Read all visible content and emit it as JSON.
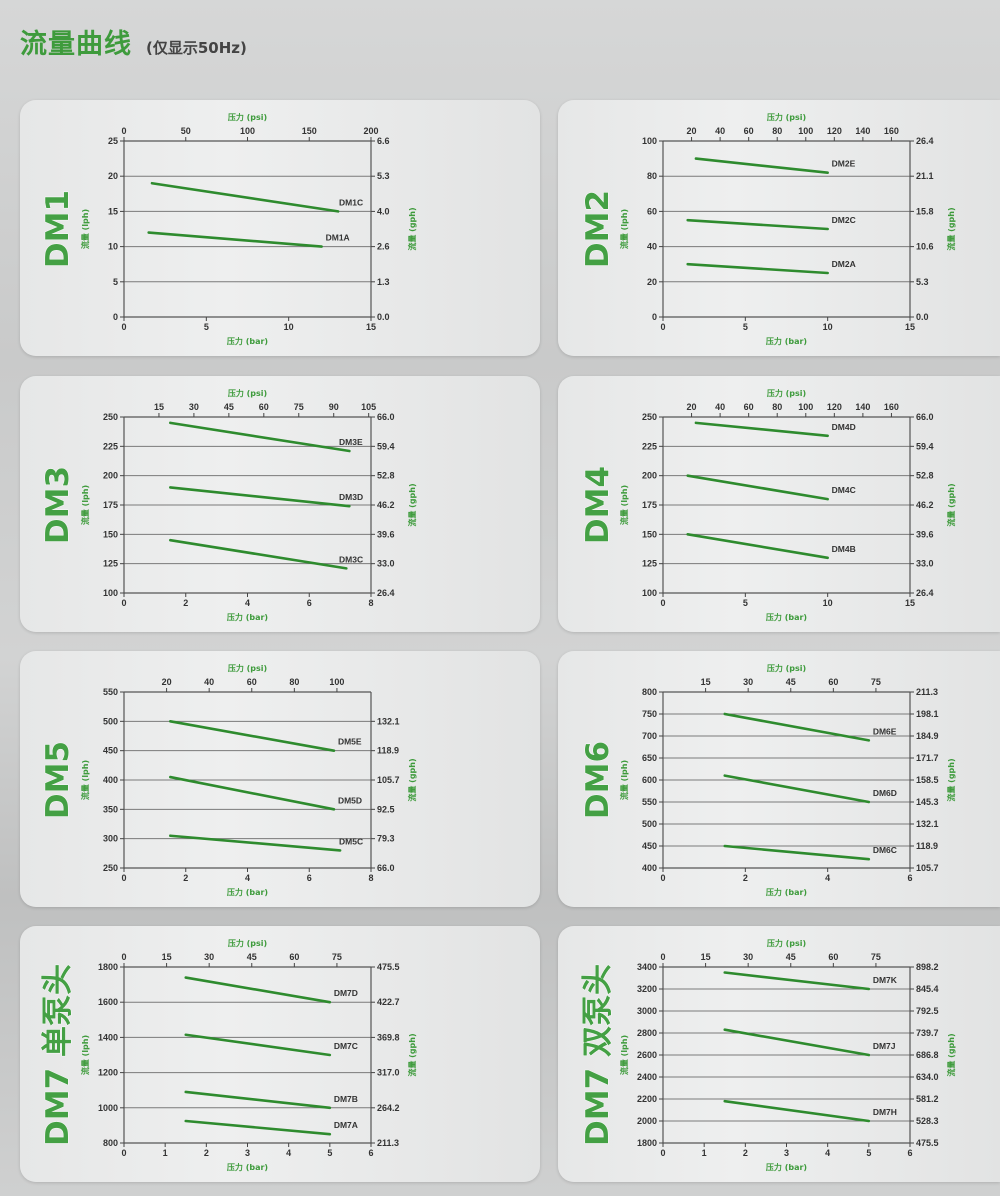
{
  "header": {
    "title": "流量曲线",
    "subtitle": "(仅显示50Hz)"
  },
  "axis_labels": {
    "top": "压力 (psi)",
    "bottom": "压力 (bar)",
    "left": "流量 (lph)",
    "right": "流量 (gph)"
  },
  "colors": {
    "line": "#2e8b2e",
    "accent": "#3e9b3c"
  },
  "chart_data": [
    {
      "type": "line",
      "title": "DM1",
      "xlim": [
        0,
        15
      ],
      "xticks": [
        0,
        5,
        10,
        15
      ],
      "ylim": [
        0,
        25
      ],
      "yticks": [
        0,
        5,
        10,
        15,
        20,
        25
      ],
      "top_range": [
        0,
        200
      ],
      "top_ticks": [
        0,
        50,
        100,
        150,
        200
      ],
      "right_ticks": [
        "0.0",
        "1.3",
        "2.6",
        "4.0",
        "5.3",
        "6.6"
      ],
      "right_tick_values": [
        0,
        5,
        10,
        15,
        20,
        25
      ],
      "series": [
        {
          "name": "DM1C",
          "x": [
            1.7,
            13
          ],
          "y": [
            19,
            15
          ]
        },
        {
          "name": "DM1A",
          "x": [
            1.5,
            12
          ],
          "y": [
            12,
            10
          ]
        }
      ]
    },
    {
      "type": "line",
      "title": "DM2",
      "xlim": [
        0,
        15
      ],
      "xticks": [
        0,
        5,
        10,
        15
      ],
      "ylim": [
        0,
        100
      ],
      "yticks": [
        0,
        20,
        40,
        60,
        80,
        100
      ],
      "top_range": [
        0,
        173
      ],
      "top_ticks": [
        20,
        40,
        60,
        80,
        100,
        120,
        140,
        160
      ],
      "right_ticks": [
        "0.0",
        "5.3",
        "10.6",
        "15.8",
        "21.1",
        "26.4"
      ],
      "right_tick_values": [
        0,
        20,
        40,
        60,
        80,
        100
      ],
      "series": [
        {
          "name": "DM2E",
          "x": [
            2,
            10
          ],
          "y": [
            90,
            82
          ]
        },
        {
          "name": "DM2C",
          "x": [
            1.5,
            10
          ],
          "y": [
            55,
            50
          ]
        },
        {
          "name": "DM2A",
          "x": [
            1.5,
            10
          ],
          "y": [
            30,
            25
          ]
        }
      ]
    },
    {
      "type": "line",
      "title": "DM3",
      "xlim": [
        0,
        8
      ],
      "xticks": [
        0,
        2,
        4,
        6,
        8
      ],
      "ylim": [
        100,
        250
      ],
      "yticks": [
        100,
        125,
        150,
        175,
        200,
        225,
        250
      ],
      "top_range": [
        0,
        106
      ],
      "top_ticks": [
        15,
        30,
        45,
        60,
        75,
        90,
        105
      ],
      "right_ticks": [
        "26.4",
        "33.0",
        "39.6",
        "46.2",
        "52.8",
        "59.4",
        "66.0"
      ],
      "right_tick_values": [
        100,
        125,
        150,
        175,
        200,
        225,
        250
      ],
      "series": [
        {
          "name": "DM3E",
          "x": [
            1.5,
            7.3
          ],
          "y": [
            245,
            221
          ]
        },
        {
          "name": "DM3D",
          "x": [
            1.5,
            7.3
          ],
          "y": [
            190,
            174
          ]
        },
        {
          "name": "DM3C",
          "x": [
            1.5,
            7.2
          ],
          "y": [
            145,
            121
          ]
        }
      ]
    },
    {
      "type": "line",
      "title": "DM4",
      "xlim": [
        0,
        15
      ],
      "xticks": [
        0,
        5,
        10,
        15
      ],
      "ylim": [
        100,
        250
      ],
      "yticks": [
        100,
        125,
        150,
        175,
        200,
        225,
        250
      ],
      "top_range": [
        0,
        173
      ],
      "top_ticks": [
        20,
        40,
        60,
        80,
        100,
        120,
        140,
        160
      ],
      "right_ticks": [
        "26.4",
        "33.0",
        "39.6",
        "46.2",
        "52.8",
        "59.4",
        "66.0"
      ],
      "right_tick_values": [
        100,
        125,
        150,
        175,
        200,
        225,
        250
      ],
      "series": [
        {
          "name": "DM4D",
          "x": [
            2,
            10
          ],
          "y": [
            245,
            234
          ]
        },
        {
          "name": "DM4C",
          "x": [
            1.5,
            10
          ],
          "y": [
            200,
            180
          ]
        },
        {
          "name": "DM4B",
          "x": [
            1.5,
            10
          ],
          "y": [
            150,
            130
          ]
        }
      ]
    },
    {
      "type": "line",
      "title": "DM5",
      "xlim": [
        0,
        8
      ],
      "xticks": [
        0,
        2,
        4,
        6,
        8
      ],
      "ylim": [
        250,
        550
      ],
      "yticks": [
        250,
        300,
        350,
        400,
        450,
        500,
        550
      ],
      "top_range": [
        0,
        116
      ],
      "top_ticks": [
        20,
        40,
        60,
        80,
        100
      ],
      "right_ticks": [
        "66.0",
        "79.3",
        "92.5",
        "105.7",
        "118.9",
        "132.1"
      ],
      "right_tick_values": [
        250,
        300,
        350,
        400,
        450,
        500
      ],
      "series": [
        {
          "name": "DM5E",
          "x": [
            1.5,
            6.8
          ],
          "y": [
            500,
            450
          ]
        },
        {
          "name": "DM5D",
          "x": [
            1.5,
            6.8
          ],
          "y": [
            405,
            350
          ]
        },
        {
          "name": "DM5C",
          "x": [
            1.5,
            7
          ],
          "y": [
            305,
            280
          ]
        }
      ]
    },
    {
      "type": "line",
      "title": "DM6",
      "xlim": [
        0,
        6
      ],
      "xticks": [
        0,
        2,
        4,
        6
      ],
      "ylim": [
        400,
        800
      ],
      "yticks": [
        400,
        450,
        500,
        550,
        600,
        650,
        700,
        750,
        800
      ],
      "top_range": [
        0,
        87
      ],
      "top_ticks": [
        15,
        30,
        45,
        60,
        75
      ],
      "right_ticks": [
        "105.7",
        "118.9",
        "132.1",
        "145.3",
        "158.5",
        "171.7",
        "184.9",
        "198.1",
        "211.3"
      ],
      "right_tick_values": [
        400,
        450,
        500,
        550,
        600,
        650,
        700,
        750,
        800
      ],
      "series": [
        {
          "name": "DM6E",
          "x": [
            1.5,
            5
          ],
          "y": [
            750,
            690
          ]
        },
        {
          "name": "DM6D",
          "x": [
            1.5,
            5
          ],
          "y": [
            610,
            550
          ]
        },
        {
          "name": "DM6C",
          "x": [
            1.5,
            5
          ],
          "y": [
            450,
            420
          ]
        }
      ]
    },
    {
      "type": "line",
      "title": "DM7 单泵头",
      "xlim": [
        0,
        6
      ],
      "xticks": [
        0,
        1,
        2,
        3,
        4,
        5,
        6
      ],
      "ylim": [
        800,
        1800
      ],
      "yticks": [
        800,
        1000,
        1200,
        1400,
        1600,
        1800
      ],
      "top_range": [
        0,
        87
      ],
      "top_ticks": [
        0,
        15,
        30,
        45,
        60,
        75
      ],
      "right_ticks": [
        "211.3",
        "264.2",
        "317.0",
        "369.8",
        "422.7",
        "475.5"
      ],
      "right_tick_values": [
        800,
        1000,
        1200,
        1400,
        1600,
        1800
      ],
      "series": [
        {
          "name": "DM7D",
          "x": [
            1.5,
            5
          ],
          "y": [
            1740,
            1600
          ]
        },
        {
          "name": "DM7C",
          "x": [
            1.5,
            5
          ],
          "y": [
            1415,
            1300
          ]
        },
        {
          "name": "DM7B",
          "x": [
            1.5,
            5
          ],
          "y": [
            1090,
            1000
          ]
        },
        {
          "name": "DM7A",
          "x": [
            1.5,
            5
          ],
          "y": [
            925,
            850
          ]
        }
      ]
    },
    {
      "type": "line",
      "title": "DM7 双泵头",
      "xlim": [
        0,
        6
      ],
      "xticks": [
        0,
        1,
        2,
        3,
        4,
        5,
        6
      ],
      "ylim": [
        1800,
        3400
      ],
      "yticks": [
        1800,
        2000,
        2200,
        2400,
        2600,
        2800,
        3000,
        3200,
        3400
      ],
      "top_range": [
        0,
        87
      ],
      "top_ticks": [
        0,
        15,
        30,
        45,
        60,
        75
      ],
      "right_ticks": [
        "475.5",
        "528.3",
        "581.2",
        "634.0",
        "686.8",
        "739.7",
        "792.5",
        "845.4",
        "898.2"
      ],
      "right_tick_values": [
        1800,
        2000,
        2200,
        2400,
        2600,
        2800,
        3000,
        3200,
        3400
      ],
      "series": [
        {
          "name": "DM7K",
          "x": [
            1.5,
            5
          ],
          "y": [
            3350,
            3200
          ]
        },
        {
          "name": "DM7J",
          "x": [
            1.5,
            5
          ],
          "y": [
            2830,
            2600
          ]
        },
        {
          "name": "DM7H",
          "x": [
            1.5,
            5
          ],
          "y": [
            2180,
            2000
          ]
        }
      ]
    }
  ]
}
